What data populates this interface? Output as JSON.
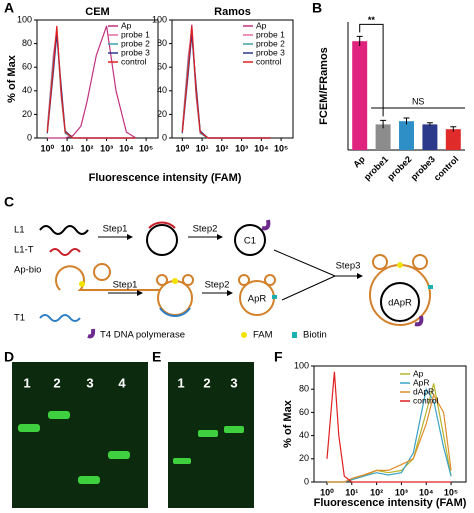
{
  "panel_labels": [
    "A",
    "B",
    "C",
    "D",
    "E",
    "F"
  ],
  "chart_data": [
    {
      "type": "line",
      "title": "CEM",
      "xlabel": "Fluorescence intensity (FAM)",
      "ylabel": "% of Max",
      "xlog": true,
      "x": [
        1,
        2,
        3,
        5,
        8,
        20,
        50,
        100,
        300,
        1000,
        3000,
        10000,
        30000
      ],
      "xlim": [
        0.3,
        400000
      ],
      "xticks": [
        {
          "value": 1,
          "label": "10⁰"
        },
        {
          "value": 10,
          "label": "10¹"
        },
        {
          "value": 100,
          "label": "10²"
        },
        {
          "value": 1000,
          "label": "10³"
        },
        {
          "value": 10000,
          "label": "10⁴"
        },
        {
          "value": 100000,
          "label": "10⁵"
        }
      ],
      "ylim": [
        0,
        100
      ],
      "yticks": [
        0,
        20,
        40,
        60,
        80,
        100
      ],
      "series": [
        {
          "name": "Ap",
          "color": "#c2307f",
          "values": [
            0,
            0,
            0,
            0,
            0,
            2,
            10,
            30,
            70,
            95,
            40,
            5,
            0
          ]
        },
        {
          "name": "probe 1",
          "color": "#e26aa0",
          "values": [
            8,
            70,
            92,
            35,
            4,
            0,
            0,
            0,
            0,
            0,
            0,
            0,
            0
          ]
        },
        {
          "name": "probe 2",
          "color": "#3aa3a8",
          "values": [
            6,
            65,
            90,
            38,
            4,
            0,
            0,
            0,
            0,
            0,
            0,
            0,
            0
          ]
        },
        {
          "name": "probe 3",
          "color": "#2a3a8c",
          "values": [
            4,
            55,
            88,
            45,
            6,
            0,
            0,
            0,
            0,
            0,
            0,
            0,
            0
          ]
        },
        {
          "name": "control",
          "color": "#e02020",
          "values": [
            5,
            60,
            95,
            40,
            5,
            0,
            0,
            0,
            0,
            0,
            0,
            0,
            0
          ]
        }
      ]
    },
    {
      "type": "line",
      "title": "Ramos",
      "xlog": true,
      "x": [
        1,
        2,
        3,
        5,
        8,
        20,
        50,
        100,
        300,
        1000,
        3000,
        10000,
        30000
      ],
      "xlim": [
        0.3,
        400000
      ],
      "xticks": [
        {
          "value": 1,
          "label": "10⁰"
        },
        {
          "value": 10,
          "label": "10¹"
        },
        {
          "value": 100,
          "label": "10²"
        },
        {
          "value": 1000,
          "label": "10³"
        },
        {
          "value": 10000,
          "label": "10⁴"
        },
        {
          "value": 100000,
          "label": "10⁵"
        }
      ],
      "ylim": [
        0,
        100
      ],
      "yticks": [
        0,
        20,
        40,
        60,
        80,
        100
      ],
      "series": [
        {
          "name": "Ap",
          "color": "#c2307f",
          "values": [
            5,
            62,
            96,
            40,
            5,
            0,
            0,
            0,
            0,
            0,
            0,
            0,
            0
          ]
        },
        {
          "name": "probe 1",
          "color": "#e26aa0",
          "values": [
            8,
            70,
            92,
            35,
            4,
            0,
            0,
            0,
            0,
            0,
            0,
            0,
            0
          ]
        },
        {
          "name": "probe 2",
          "color": "#3aa3a8",
          "values": [
            6,
            65,
            90,
            38,
            4,
            0,
            0,
            0,
            0,
            0,
            0,
            0,
            0
          ]
        },
        {
          "name": "probe 3",
          "color": "#2a3a8c",
          "values": [
            4,
            55,
            88,
            45,
            6,
            0,
            0,
            0,
            0,
            0,
            0,
            0,
            0
          ]
        },
        {
          "name": "control",
          "color": "#e02020",
          "values": [
            5,
            60,
            95,
            40,
            5,
            0,
            0,
            0,
            0,
            0,
            0,
            0,
            0
          ]
        }
      ]
    },
    {
      "type": "bar",
      "ylabel": "FCEM/FRamos",
      "categories": [
        "Ap",
        "probe1",
        "probe2",
        "probe3",
        "control"
      ],
      "values": [
        6.8,
        1.6,
        1.8,
        1.6,
        1.3
      ],
      "errors": [
        0.3,
        0.25,
        0.2,
        0.1,
        0.15
      ],
      "colors": [
        "#e0237f",
        "#8c8c8c",
        "#2e8fc7",
        "#2c3a8c",
        "#e02b2b"
      ],
      "ylim": [
        0,
        8
      ],
      "annotations": [
        "**",
        "NS"
      ]
    },
    {
      "type": "line",
      "xlabel": "Fluorescence intensity (FAM)",
      "ylabel": "% of Max",
      "xlog": true,
      "x": [
        1,
        2,
        3,
        5,
        10,
        30,
        100,
        300,
        1000,
        3000,
        10000,
        20000,
        50000,
        100000
      ],
      "xlim": [
        0.3,
        400000
      ],
      "xticks": [
        {
          "value": 1,
          "label": "10⁰"
        },
        {
          "value": 10,
          "label": "10¹"
        },
        {
          "value": 100,
          "label": "10²"
        },
        {
          "value": 1000,
          "label": "10³"
        },
        {
          "value": 10000,
          "label": "10⁴"
        },
        {
          "value": 100000,
          "label": "10⁵"
        }
      ],
      "ylim": [
        0,
        100
      ],
      "yticks": [
        0,
        20,
        40,
        60,
        80,
        100
      ],
      "series": [
        {
          "name": "Ap",
          "color": "#b5b52a",
          "values": [
            0,
            0,
            0,
            0,
            2,
            5,
            10,
            8,
            10,
            20,
            60,
            85,
            40,
            5
          ]
        },
        {
          "name": "ApR",
          "color": "#3aa3c8",
          "values": [
            0,
            0,
            0,
            0,
            2,
            5,
            8,
            6,
            8,
            25,
            80,
            70,
            30,
            5
          ]
        },
        {
          "name": "dApR",
          "color": "#e08c2a",
          "values": [
            0,
            0,
            0,
            0,
            3,
            6,
            10,
            10,
            15,
            20,
            50,
            75,
            60,
            10
          ]
        },
        {
          "name": "control",
          "color": "#e02020",
          "values": [
            20,
            95,
            40,
            5,
            0,
            0,
            0,
            0,
            0,
            0,
            0,
            0,
            0,
            0
          ]
        }
      ]
    }
  ],
  "diagram": {
    "l1": "L1",
    "l1t": "L1-T",
    "step1a": "Step1",
    "step2a": "Step2",
    "c1": "C1",
    "apbio": "Ap-bio",
    "t1": "T1",
    "step1b": "Step1",
    "step2b": "Step2",
    "apr": "ApR",
    "step3": "Step3",
    "dapr": "dApR",
    "legend": [
      "T4 DNA polymerase",
      "FAM",
      "Biotin"
    ]
  },
  "gel_d": {
    "lanes": [
      "1",
      "2",
      "3",
      "4"
    ]
  },
  "gel_e": {
    "lanes": [
      "1",
      "2",
      "3"
    ]
  }
}
